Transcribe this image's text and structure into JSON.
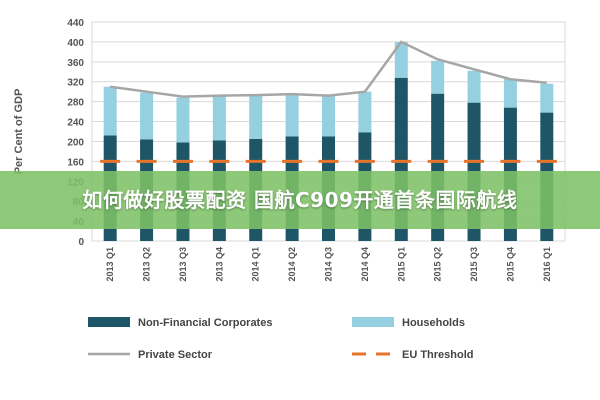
{
  "colors": {
    "nfc": "#1f5667",
    "households": "#94d0df",
    "private_sector_line": "#a6a6a6",
    "eu_threshold": "#e8742c",
    "grid": "#d9d9d9",
    "banner_bg": "#7ec266"
  },
  "banner": {
    "text": "如何做好股票配资 国航C909开通首条国际航线"
  },
  "chart_data": {
    "type": "bar",
    "stacked": true,
    "categories": [
      "2013 Q1",
      "2013 Q2",
      "2013 Q3",
      "2013 Q4",
      "2014 Q1",
      "2014 Q2",
      "2014 Q3",
      "2014 Q4",
      "2015 Q1",
      "2015 Q2",
      "2015 Q3",
      "2015 Q4",
      "2016 Q1"
    ],
    "series": [
      {
        "name": "Non-Financial Corporates",
        "kind": "bar",
        "values": [
          212,
          204,
          198,
          202,
          205,
          210,
          210,
          218,
          328,
          296,
          278,
          268,
          258
        ]
      },
      {
        "name": "Households",
        "kind": "bar",
        "values": [
          98,
          94,
          90,
          90,
          88,
          85,
          82,
          82,
          72,
          66,
          64,
          58,
          58
        ]
      },
      {
        "name": "Private Sector",
        "kind": "line",
        "values": [
          310,
          300,
          290,
          292,
          293,
          295,
          292,
          300,
          400,
          365,
          345,
          325,
          318
        ]
      },
      {
        "name": "EU Threshold",
        "kind": "dashed-line",
        "values": [
          160,
          160,
          160,
          160,
          160,
          160,
          160,
          160,
          160,
          160,
          160,
          160,
          160
        ]
      }
    ],
    "ylabel": "Per Cent of GDP",
    "xlabel": "",
    "ylim": [
      0,
      440
    ],
    "yticks": [
      0,
      40,
      80,
      120,
      160,
      200,
      240,
      280,
      320,
      360,
      400,
      440
    ],
    "grid": true,
    "legend": [
      {
        "label": "Non-Financial Corporates",
        "marker": "bar"
      },
      {
        "label": "Households",
        "marker": "bar"
      },
      {
        "label": "Private Sector",
        "marker": "line"
      },
      {
        "label": "EU Threshold",
        "marker": "dashed-line"
      }
    ],
    "legend_position": "bottom"
  }
}
